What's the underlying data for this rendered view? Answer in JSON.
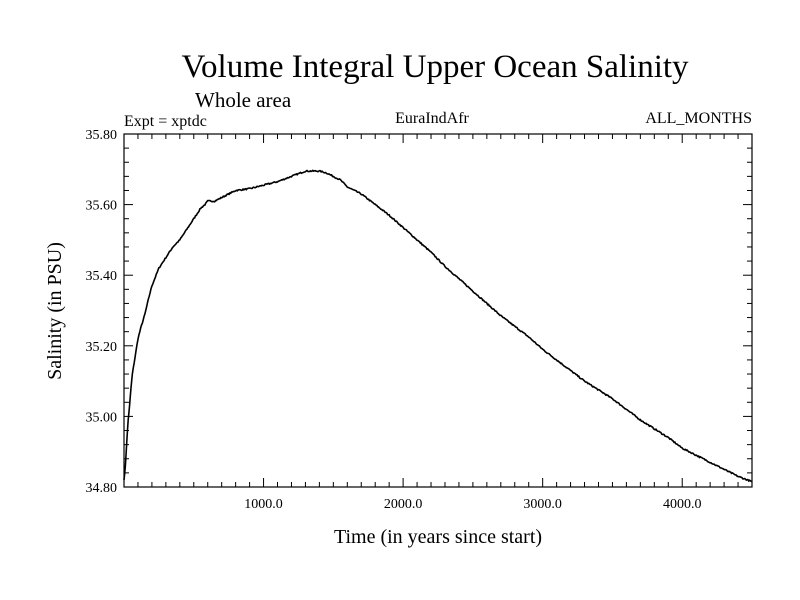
{
  "chart_data": {
    "type": "line",
    "title": "Volume Integral Upper Ocean Salinity",
    "subtitle": "Whole area",
    "annotation_left": "Expt = xptdc",
    "annotation_center": "EuraIndAfr",
    "annotation_right": "ALL_MONTHS",
    "xlabel": "Time (in years since start)",
    "ylabel": "Salinity (in PSU)",
    "xlim": [
      0,
      4500
    ],
    "ylim": [
      34.8,
      35.8
    ],
    "xticks": [
      1000,
      2000,
      3000,
      4000
    ],
    "xtick_labels": [
      "1000.0",
      "2000.0",
      "3000.0",
      "4000.0"
    ],
    "yticks": [
      34.8,
      35.0,
      35.2,
      35.4,
      35.6,
      35.8
    ],
    "ytick_labels": [
      "34.80",
      "35.00",
      "35.20",
      "35.40",
      "35.60",
      "35.80"
    ],
    "grid": false,
    "line_color": "#000000",
    "series": [
      {
        "x": [
          0,
          10,
          20,
          30,
          40,
          50,
          60,
          80,
          100,
          120,
          150,
          180,
          200,
          250,
          300,
          350,
          400,
          450,
          500,
          550,
          580,
          600,
          650,
          700,
          800,
          900,
          1000,
          1100,
          1200,
          1300,
          1400,
          1450,
          1500,
          1550,
          1600,
          1700,
          1800,
          1900,
          2000,
          2100,
          2200,
          2300,
          2400,
          2500,
          2600,
          2700,
          2800,
          2900,
          3000,
          3100,
          3200,
          3300,
          3400,
          3500,
          3600,
          3700,
          3800,
          3900,
          4000,
          4100,
          4200,
          4300,
          4400,
          4500
        ],
        "y": [
          34.82,
          34.86,
          34.93,
          34.99,
          35.03,
          35.08,
          35.12,
          35.17,
          35.22,
          35.25,
          35.29,
          35.34,
          35.37,
          35.42,
          35.45,
          35.48,
          35.5,
          35.53,
          35.56,
          35.59,
          35.6,
          35.61,
          35.61,
          35.62,
          35.64,
          35.645,
          35.655,
          35.665,
          35.68,
          35.695,
          35.695,
          35.69,
          35.68,
          35.67,
          35.65,
          35.63,
          35.6,
          35.57,
          35.535,
          35.5,
          35.465,
          35.425,
          35.39,
          35.355,
          35.32,
          35.285,
          35.255,
          35.225,
          35.19,
          35.16,
          35.13,
          35.1,
          35.075,
          35.05,
          35.02,
          34.99,
          34.965,
          34.94,
          34.91,
          34.89,
          34.87,
          34.85,
          34.83,
          34.815
        ]
      }
    ]
  }
}
